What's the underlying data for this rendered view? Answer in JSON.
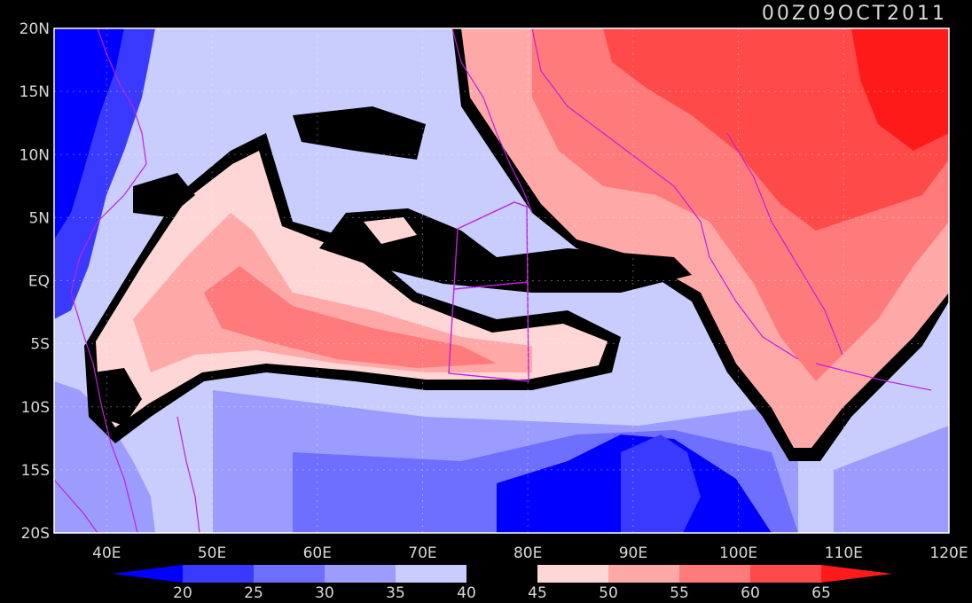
{
  "timestamp": "00Z09OCT2011",
  "map": {
    "lon_range": [
      35,
      120
    ],
    "lat_range": [
      -20,
      20
    ],
    "lat_ticks": [
      {
        "value": 20,
        "label": "20N"
      },
      {
        "value": 15,
        "label": "15N"
      },
      {
        "value": 10,
        "label": "10N"
      },
      {
        "value": 5,
        "label": "5N"
      },
      {
        "value": 0,
        "label": "EQ"
      },
      {
        "value": -5,
        "label": "5S"
      },
      {
        "value": -10,
        "label": "10S"
      },
      {
        "value": -15,
        "label": "15S"
      },
      {
        "value": -20,
        "label": "20S"
      }
    ],
    "lon_ticks": [
      {
        "value": 40,
        "label": "40E"
      },
      {
        "value": 50,
        "label": "50E"
      },
      {
        "value": 60,
        "label": "60E"
      },
      {
        "value": 70,
        "label": "70E"
      },
      {
        "value": 80,
        "label": "80E"
      },
      {
        "value": 90,
        "label": "90E"
      },
      {
        "value": 100,
        "label": "100E"
      },
      {
        "value": 110,
        "label": "110E"
      },
      {
        "value": 120,
        "label": "120E"
      }
    ],
    "grid": "dotted",
    "background_color": "#d0d6ff"
  },
  "colorbar": {
    "labels": [
      "20",
      "25",
      "30",
      "35",
      "40",
      "45",
      "50",
      "55",
      "60",
      "65"
    ],
    "colors": [
      "#0000ff",
      "#3a3aff",
      "#6f6fff",
      "#9c9cff",
      "#c8cdfd",
      "#000000",
      "#ffd6d6",
      "#ffa8a8",
      "#ff7a7a",
      "#ff4a4a",
      "#ff1a1a"
    ]
  }
}
